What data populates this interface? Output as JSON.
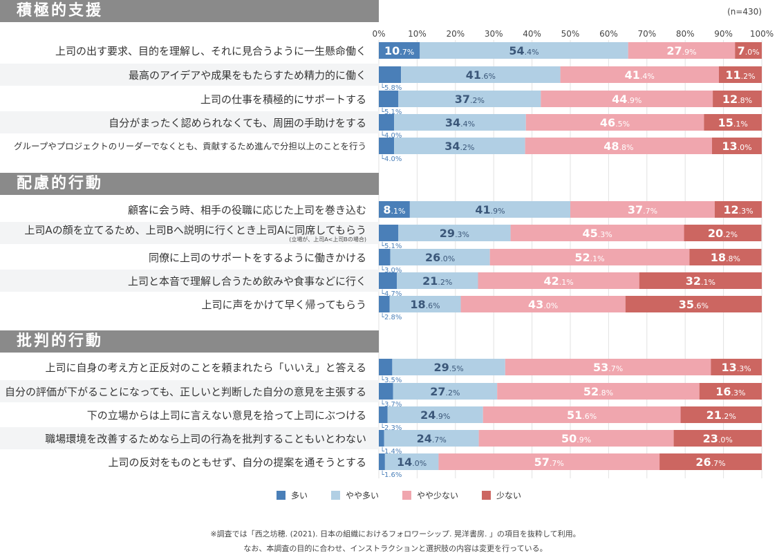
{
  "n_label": "(n=430)",
  "chart_data": {
    "type": "bar",
    "orientation": "horizontal-stacked-100",
    "xlim": [
      0,
      100
    ],
    "x_ticks": [
      "0%",
      "10%",
      "20%",
      "30%",
      "40%",
      "50%",
      "60%",
      "70%",
      "80%",
      "90%",
      "100%"
    ],
    "grid": true,
    "legend_placement": "bottom",
    "series": [
      {
        "name": "多い",
        "color": "#4a7fb8"
      },
      {
        "name": "やや多い",
        "color": "#b1cfe4"
      },
      {
        "name": "やや少ない",
        "color": "#f0a6ae"
      },
      {
        "name": "少ない",
        "color": "#cc6661"
      }
    ],
    "sections": [
      {
        "title": "積極的支援",
        "rows": [
          {
            "label": "上司の出す要求、目的を理解し、それに見合うように一生懸命働く",
            "values": [
              10.7,
              54.4,
              27.9,
              7.0
            ]
          },
          {
            "label": "最高のアイデアや成果をもたらすため精力的に働く",
            "values": [
              5.8,
              41.6,
              41.4,
              11.2
            ]
          },
          {
            "label": "上司の仕事を積極的にサポートする",
            "values": [
              5.1,
              37.2,
              44.9,
              12.8
            ]
          },
          {
            "label": "自分がまったく認められなくても、周囲の手助けをする",
            "values": [
              4.0,
              34.4,
              46.5,
              15.1
            ]
          },
          {
            "label": "グループやプロジェクトのリーダーでなくとも、貢献するため進んで分担以上のことを行う",
            "values": [
              4.0,
              34.2,
              48.8,
              13.0
            ]
          }
        ]
      },
      {
        "title": "配慮的行動",
        "rows": [
          {
            "label": "顧客に会う時、相手の役職に応じた上司を巻き込む",
            "values": [
              8.1,
              41.9,
              37.7,
              12.3
            ]
          },
          {
            "label": "上司Aの顔を立てるため、上司Bへ説明に行くとき上司Aに同席してもらう",
            "sublabel": "(立場が、上司A<上司Bの場合)",
            "values": [
              5.1,
              29.3,
              45.3,
              20.2
            ]
          },
          {
            "label": "同僚に上司のサポートをするように働きかける",
            "values": [
              3.0,
              26.0,
              52.1,
              18.8
            ]
          },
          {
            "label": "上司と本音で理解し合うため飲みや食事などに行く",
            "values": [
              4.7,
              21.2,
              42.1,
              32.1
            ]
          },
          {
            "label": "上司に声をかけて早く帰ってもらう",
            "values": [
              2.8,
              18.6,
              43.0,
              35.6
            ]
          }
        ]
      },
      {
        "title": "批判的行動",
        "rows": [
          {
            "label": "上司に自身の考え方と正反対のことを頼まれたら「いいえ」と答える",
            "values": [
              3.5,
              29.5,
              53.7,
              13.3
            ]
          },
          {
            "label": "自分の評価が下がることになっても、正しいと判断した自分の意見を主張する",
            "values": [
              3.7,
              27.2,
              52.8,
              16.3
            ]
          },
          {
            "label": "下の立場からは上司に言えない意見を拾って上司にぶつける",
            "values": [
              2.3,
              24.9,
              51.6,
              21.2
            ]
          },
          {
            "label": "職場環境を改善するためなら上司の行為を批判することもいとわない",
            "values": [
              1.4,
              24.7,
              50.9,
              23.0
            ]
          },
          {
            "label": "上司の反対をものともせず、自分の提案を通そうとする",
            "values": [
              1.6,
              14.0,
              57.7,
              26.7
            ]
          }
        ]
      }
    ]
  },
  "footnotes": [
    "※調査では「西之坊穂. (2021). 日本の組織におけるフォロワーシップ. 晃洋書房. 」の項目を抜粋して利用。",
    "なお、本調査の目的に合わせ、インストラクションと選択肢の内容は変更を行っている。"
  ]
}
